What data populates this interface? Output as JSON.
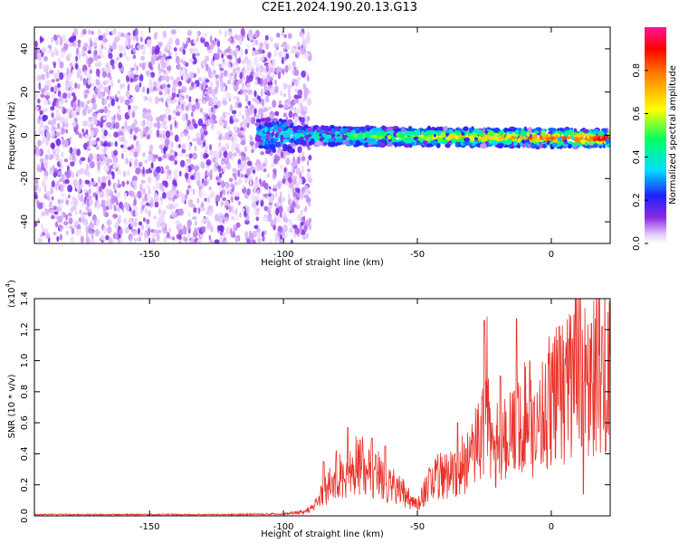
{
  "figure": {
    "title": "C2E1.2024.190.20.13.G13"
  },
  "chart_data": [
    {
      "type": "heatmap",
      "xlabel": "Height of straight line (km)",
      "ylabel": "Frequency (Hz)",
      "xlim": [
        -193,
        22
      ],
      "ylim": [
        -50,
        50
      ],
      "xticks": [
        -150,
        -100,
        -50,
        0
      ],
      "yticks": [
        -40,
        -20,
        0,
        20,
        40
      ],
      "colorbar": {
        "label": "Normalized spectral amplitude",
        "range": [
          0,
          1
        ],
        "ticks": [
          0.0,
          0.2,
          0.4,
          0.6,
          0.8
        ],
        "colormap": "rainbow (white-purple-blue-cyan-green-yellow-red-pink)"
      },
      "regions": [
        {
          "name": "noise",
          "x_range": [
            -193,
            -96
          ],
          "freq_range": [
            -50,
            48
          ],
          "amplitude_level": 0.15
        },
        {
          "name": "signal band",
          "x_range": [
            -110,
            22
          ],
          "center_freq": 0,
          "band_halfwidth_hz": 4,
          "amplitude_level": "0.2 near -105 rising to 0.9 near 0"
        }
      ],
      "grid": false
    },
    {
      "type": "line",
      "xlabel": "Height of straight line (km)",
      "ylabel": "SNR (10 * v/v)",
      "yscale_label": "(x10",
      "yscale_exp": "4",
      "xlim": [
        -193,
        22
      ],
      "ylim": [
        0,
        1.4
      ],
      "ylim_units": "x10^4",
      "xticks": [
        -150,
        -100,
        -50,
        0
      ],
      "yticks": [
        0.0,
        0.2,
        0.4,
        0.6,
        0.8,
        1.0,
        1.2,
        1.4
      ],
      "grid": false,
      "series": [
        {
          "color": "#e8322a",
          "x": [
            -193,
            -150,
            -120,
            -100,
            -92,
            -88,
            -84,
            -80,
            -76,
            -72,
            -68,
            -64,
            -60,
            -56,
            -52,
            -50,
            -46,
            -42,
            -38,
            -34,
            -30,
            -26,
            -24,
            -22,
            -18,
            -14,
            -10,
            -6,
            -2,
            0,
            4,
            8,
            10,
            12,
            14,
            16,
            18,
            20,
            22
          ],
          "y": [
            0.01,
            0.01,
            0.01,
            0.015,
            0.03,
            0.08,
            0.2,
            0.3,
            0.28,
            0.38,
            0.32,
            0.3,
            0.22,
            0.18,
            0.1,
            0.08,
            0.22,
            0.28,
            0.3,
            0.35,
            0.4,
            0.6,
            0.9,
            0.5,
            0.55,
            0.6,
            0.7,
            0.65,
            0.75,
            0.85,
            0.9,
            0.95,
            1.1,
            1.0,
            0.9,
            1.0,
            1.05,
            1.1,
            1.1
          ],
          "peaks": [
            {
              "x": -85,
              "y": 0.35
            },
            {
              "x": -76,
              "y": 0.57
            },
            {
              "x": -67,
              "y": 0.5
            },
            {
              "x": -62,
              "y": 0.45
            },
            {
              "x": -35,
              "y": 0.6
            },
            {
              "x": -25,
              "y": 1.26
            },
            {
              "x": -19,
              "y": 0.9
            },
            {
              "x": -13,
              "y": 1.27
            },
            {
              "x": -8,
              "y": 1.0
            },
            {
              "x": 3,
              "y": 1.22
            },
            {
              "x": 9,
              "y": 1.42
            },
            {
              "x": 13,
              "y": 1.1
            },
            {
              "x": 15,
              "y": 1.24
            },
            {
              "x": 19,
              "y": 1.22
            }
          ],
          "dips": [
            {
              "x": 12,
              "y": 0.14
            }
          ]
        }
      ]
    }
  ]
}
